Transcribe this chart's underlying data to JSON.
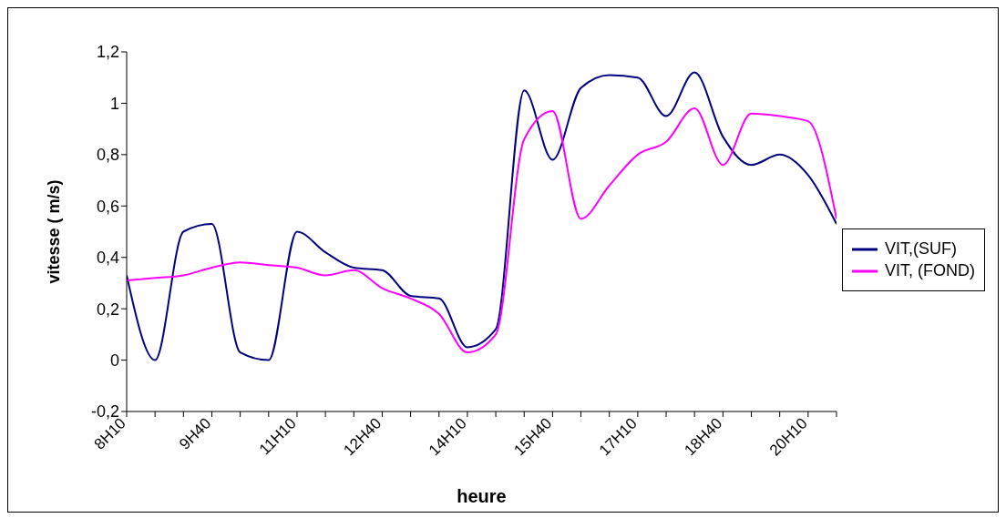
{
  "chart_data": {
    "type": "line",
    "xlabel": "heure",
    "ylabel": "vitesse ( m/s)",
    "categories": [
      "8H10",
      null,
      null,
      "9H40",
      null,
      null,
      "11H10",
      null,
      null,
      "12H40",
      null,
      null,
      "14H10",
      null,
      null,
      "15H40",
      null,
      null,
      "17H10",
      null,
      null,
      "18H40",
      null,
      null,
      "20H10",
      null
    ],
    "series": [
      {
        "name": "VIT,(SUF)",
        "color": "#000080",
        "values": [
          0.33,
          0,
          0.5,
          0.53,
          0.03,
          0,
          0.5,
          0.42,
          0.36,
          0.35,
          0.25,
          0.24,
          0.05,
          0.12,
          1.05,
          0.78,
          1.06,
          1.11,
          1.1,
          0.95,
          1.12,
          0.87,
          0.76,
          0.8,
          0.72,
          0.53
        ]
      },
      {
        "name": "VIT, (FOND)",
        "color": "#ff00ff",
        "values": [
          0.31,
          0.32,
          0.33,
          0.36,
          0.38,
          0.37,
          0.36,
          0.33,
          0.35,
          0.28,
          0.24,
          0.18,
          0.03,
          0.1,
          0.86,
          0.97,
          0.55,
          0.68,
          0.8,
          0.85,
          0.98,
          0.76,
          0.96,
          0.95,
          0.93,
          0.55
        ]
      }
    ],
    "ylim": [
      -0.2,
      1.2
    ],
    "yticks": [
      {
        "value": -0.2,
        "label": "-0,2"
      },
      0,
      {
        "value": 0.2,
        "label": "0,2"
      },
      {
        "value": 0.4,
        "label": "0,4"
      },
      {
        "value": 0.6,
        "label": "0,6"
      },
      {
        "value": 0.8,
        "label": "0,8"
      },
      1,
      {
        "value": 1.2,
        "label": "1,2"
      }
    ],
    "grid": false,
    "legend": "right",
    "marker": "none",
    "line_style": "solid"
  }
}
